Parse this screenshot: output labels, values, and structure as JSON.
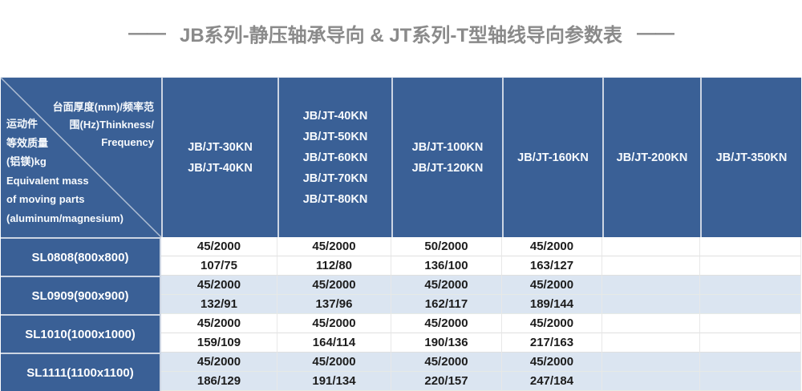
{
  "title": {
    "dash_left": "——",
    "text": "JB系列-静压轴承导向 & JT系列-T型轴线导向参数表",
    "dash_right": "——"
  },
  "colors": {
    "header_blue": "#3a6096",
    "alt_row_blue": "#dbe5f1",
    "title_gray": "#8a8a8a",
    "grid_line": "#ccd5e3"
  },
  "table": {
    "corner": {
      "top_right_lines": [
        "台面厚度(mm)/频率范",
        "围(Hz)Thinkness/",
        "Frequency"
      ],
      "bottom_left_lines": [
        "运动件",
        "等效质量",
        "(铝镁)kg",
        "Equivalent mass",
        "of moving parts",
        "(aluminum/magnesium)"
      ]
    },
    "columns": [
      {
        "id": "jb-jt-30-40kn",
        "lines": [
          "JB/JT-30KN",
          "JB/JT-40KN"
        ]
      },
      {
        "id": "jb-jt-40-80kn",
        "lines": [
          "JB/JT-40KN",
          "JB/JT-50KN",
          "JB/JT-60KN",
          "JB/JT-70KN",
          "JB/JT-80KN"
        ]
      },
      {
        "id": "jb-jt-100-120kn",
        "lines": [
          "JB/JT-100KN",
          "JB/JT-120KN"
        ]
      },
      {
        "id": "jb-jt-160kn",
        "lines": [
          "JB/JT-160KN"
        ]
      },
      {
        "id": "jb-jt-200kn",
        "lines": [
          "JB/JT-200KN"
        ]
      },
      {
        "id": "jb-jt-350kn",
        "lines": [
          "JB/JT-350KN"
        ]
      }
    ],
    "rows": [
      {
        "label": "SL0808(800x800)",
        "thickness_frequency": [
          "45/2000",
          "45/2000",
          "50/2000",
          "45/2000",
          "",
          ""
        ],
        "equivalent_mass": [
          "107/75",
          "112/80",
          "136/100",
          "163/127",
          "",
          ""
        ]
      },
      {
        "label": "SL0909(900x900)",
        "thickness_frequency": [
          "45/2000",
          "45/2000",
          "45/2000",
          "45/2000",
          "",
          ""
        ],
        "equivalent_mass": [
          "132/91",
          "137/96",
          "162/117",
          "189/144",
          "",
          ""
        ]
      },
      {
        "label": "SL1010(1000x1000)",
        "thickness_frequency": [
          "45/2000",
          "45/2000",
          "45/2000",
          "45/2000",
          "",
          ""
        ],
        "equivalent_mass": [
          "159/109",
          "164/114",
          "190/136",
          "217/163",
          "",
          ""
        ]
      },
      {
        "label": "SL1111(1100x1100)",
        "thickness_frequency": [
          "45/2000",
          "45/2000",
          "45/2000",
          "45/2000",
          "",
          ""
        ],
        "equivalent_mass": [
          "186/129",
          "191/134",
          "220/157",
          "247/184",
          "",
          ""
        ]
      }
    ]
  }
}
